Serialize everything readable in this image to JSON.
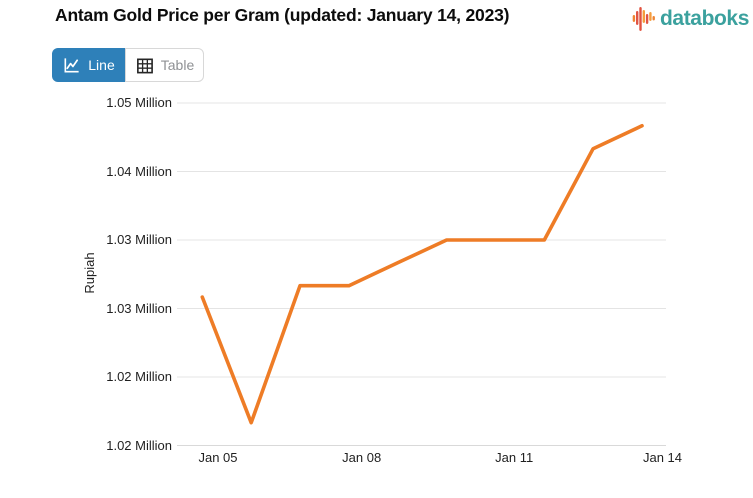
{
  "header": {
    "title": "Antam Gold Price per Gram (updated: January 14, 2023)",
    "brand": "databoks"
  },
  "toolbar": {
    "line_label": "Line",
    "table_label": "Table"
  },
  "colors": {
    "accent_orange": "#ee7c26",
    "active_button_blue": "#2e80b9",
    "brand_teal": "#3ba19e",
    "gridline_gray": "#e4e4e4"
  },
  "chart_data": {
    "type": "line",
    "title": "Antam Gold Price per Gram (updated: January 14, 2023)",
    "ylabel": "Rupiah",
    "xlabel": "",
    "x": [
      "Jan 05",
      "Jan 06",
      "Jan 07",
      "Jan 08",
      "Jan 09",
      "Jan 10",
      "Jan 11",
      "Jan 12",
      "Jan 13",
      "Jan 14"
    ],
    "values": [
      1029000,
      1018000,
      1030000,
      1030000,
      1032000,
      1034000,
      1034000,
      1034000,
      1042000,
      1044000
    ],
    "ylim": [
      1016000,
      1046000
    ],
    "y_tick_labels": [
      "1.05 Million",
      "1.04 Million",
      "1.03 Million",
      "1.03 Million",
      "1.02 Million",
      "1.02 Million"
    ],
    "x_tick_labels": [
      "Jan 05",
      "Jan 08",
      "Jan 11",
      "Jan 14"
    ],
    "grid": true,
    "legend": "none",
    "line_color": "#ee7c26"
  }
}
